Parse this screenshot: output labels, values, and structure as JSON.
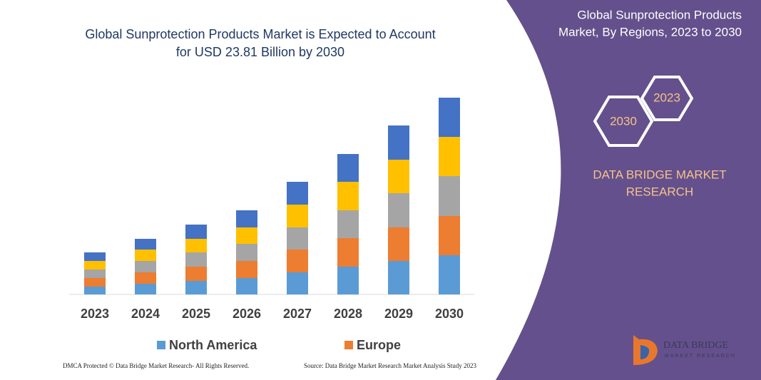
{
  "chart_data": {
    "type": "stacked_bar",
    "title": [
      "Global Sunprotection Products Market is Expected to Account",
      "for USD 23.81 Billion by 2030"
    ],
    "categories": [
      "2023",
      "2024",
      "2025",
      "2026",
      "2027",
      "2028",
      "2029",
      "2030"
    ],
    "series": [
      {
        "name": "North America",
        "color": "#5b9bd5",
        "values": [
          11,
          15,
          19,
          23,
          31,
          39,
          47,
          55
        ]
      },
      {
        "name": "Europe",
        "color": "#ed7d31",
        "values": [
          12,
          16,
          20,
          24,
          32,
          40,
          47,
          55
        ]
      },
      {
        "color": "#a5a5a5",
        "values": [
          12,
          16,
          20,
          24,
          31,
          39,
          48,
          56
        ]
      },
      {
        "color": "#ffc000",
        "values": [
          12,
          16,
          19,
          23,
          32,
          40,
          47,
          55
        ]
      },
      {
        "color": "#4472c4",
        "values": [
          12,
          15,
          20,
          24,
          32,
          39,
          48,
          55
        ]
      }
    ],
    "ylim": [
      0,
      280
    ]
  },
  "panel": {
    "title": [
      "Global Sunprotection Products",
      "Market, By Regions, 2023 to 2030"
    ],
    "hexagons": [
      "2023",
      "2030"
    ],
    "brand": [
      "DATA BRIDGE MARKET",
      "RESEARCH"
    ],
    "logo": [
      "DATA BRIDGE",
      "MARKET RESEARCH"
    ]
  },
  "footer": {
    "left": "DMCA Protected © Data Bridge Market Research- All Rights Reserved.",
    "right": "Source: Data Bridge Market Research Market Analysis Study 2023"
  }
}
